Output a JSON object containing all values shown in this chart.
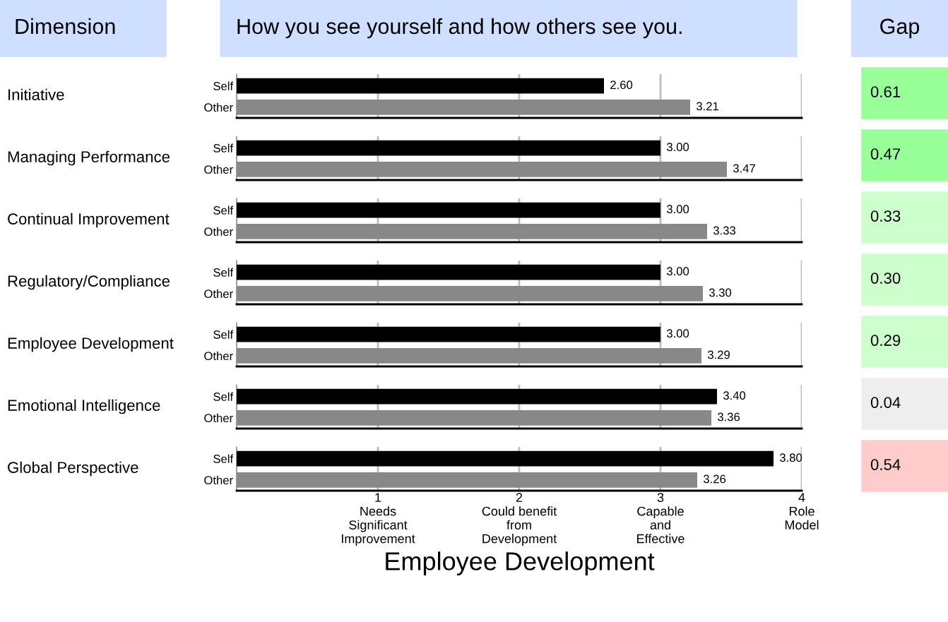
{
  "chart_data": [
    {
      "type": "other",
      "annotations": [
        "Dimension",
        "How you see yourself and how others see you."
      ],
      "colors": [
        "#cfdfff",
        "#cfdfff"
      ]
    },
    {
      "type": "bar",
      "orientation": "horizontal",
      "ylabel": "Initiative",
      "categories": [
        "Self",
        "Other"
      ],
      "values": [
        2.6,
        3.21
      ],
      "value_labels": [
        "2.60",
        "3.21"
      ],
      "colors": [
        "#000000",
        "#888888"
      ],
      "xlim": [
        0,
        4
      ],
      "xticks": [
        1,
        2,
        3,
        4
      ],
      "grid": "x",
      "tick_labels": "y"
    },
    {
      "type": "bar",
      "orientation": "horizontal",
      "ylabel": "Managing Performance",
      "categories": [
        "Self",
        "Other"
      ],
      "values": [
        3.0,
        3.47
      ],
      "value_labels": [
        "3.00",
        "3.47"
      ],
      "colors": [
        "#000000",
        "#888888"
      ],
      "xlim": [
        0,
        4
      ],
      "xticks": [
        1,
        2,
        3,
        4
      ],
      "grid": "x",
      "tick_labels": "y"
    },
    {
      "type": "bar",
      "orientation": "horizontal",
      "ylabel": "Continual Improvement",
      "categories": [
        "Self",
        "Other"
      ],
      "values": [
        3.0,
        3.33
      ],
      "value_labels": [
        "3.00",
        "3.33"
      ],
      "colors": [
        "#000000",
        "#888888"
      ],
      "xlim": [
        0,
        4
      ],
      "xticks": [
        1,
        2,
        3,
        4
      ],
      "grid": "x",
      "tick_labels": "y"
    },
    {
      "type": "bar",
      "orientation": "horizontal",
      "ylabel": "Regulatory/Compliance",
      "categories": [
        "Self",
        "Other"
      ],
      "values": [
        3.0,
        3.3
      ],
      "value_labels": [
        "3.00",
        "3.30"
      ],
      "colors": [
        "#000000",
        "#888888"
      ],
      "xlim": [
        0,
        4
      ],
      "xticks": [
        1,
        2,
        3,
        4
      ],
      "grid": "x",
      "tick_labels": "y"
    },
    {
      "type": "bar",
      "orientation": "horizontal",
      "ylabel": "Employee Development",
      "categories": [
        "Self",
        "Other"
      ],
      "values": [
        3.0,
        3.29
      ],
      "value_labels": [
        "3.00",
        "3.29"
      ],
      "colors": [
        "#000000",
        "#888888"
      ],
      "xlim": [
        0,
        4
      ],
      "xticks": [
        1,
        2,
        3,
        4
      ],
      "grid": "x",
      "tick_labels": "y"
    },
    {
      "type": "bar",
      "orientation": "horizontal",
      "ylabel": "Emotional Intelligence",
      "categories": [
        "Self",
        "Other"
      ],
      "values": [
        3.4,
        3.36
      ],
      "value_labels": [
        "3.40",
        "3.36"
      ],
      "colors": [
        "#000000",
        "#888888"
      ],
      "xlim": [
        0,
        4
      ],
      "xticks": [
        1,
        2,
        3,
        4
      ],
      "grid": "x",
      "tick_labels": "y"
    },
    {
      "type": "bar",
      "orientation": "horizontal",
      "ylabel": "Global Perspective",
      "categories": [
        "Self",
        "Other"
      ],
      "values": [
        3.8,
        3.26
      ],
      "value_labels": [
        "3.80",
        "3.26"
      ],
      "colors": [
        "#000000",
        "#888888"
      ],
      "xlim": [
        0,
        4
      ],
      "xlabel": "Employee Development",
      "grid": "x",
      "xticks": [
        {
          "value": 1,
          "label": "1\nNeeds\nSignificant\nImprovement"
        },
        {
          "value": 2,
          "label": "2\nCould benefit\nfrom\nDevelopment"
        },
        {
          "value": 3,
          "label": "3\nCapable\nand\nEffective"
        },
        {
          "value": 4,
          "label": "4\nRole\nModel"
        }
      ]
    },
    {
      "type": "other",
      "title": "Gap",
      "annotations": [
        "0.61",
        "0.47",
        "0.33",
        "0.30",
        "0.29",
        "0.04",
        "0.54"
      ],
      "colors": [
        "#99ff99",
        "#99ff99",
        "#ccffcc",
        "#ccffcc",
        "#ccffcc",
        "#eeeeee",
        "#ffcccc"
      ]
    }
  ]
}
